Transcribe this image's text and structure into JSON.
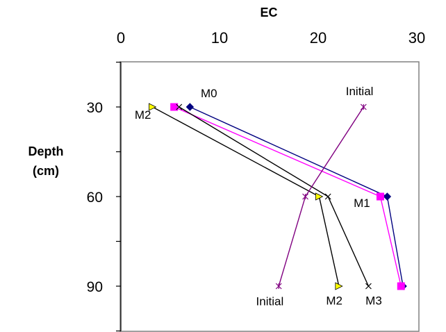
{
  "chart_data": {
    "type": "line",
    "title": "",
    "xlabel": "EC",
    "ylabel": [
      "Depth",
      "(cm)"
    ],
    "xlim": [
      0,
      30
    ],
    "ylim": [
      15,
      105
    ],
    "y_reversed": true,
    "x_axis_position": "top",
    "x_ticks": [
      0,
      10,
      20,
      30
    ],
    "y_ticks": [
      30,
      60,
      90
    ],
    "grid": false,
    "legend": "none",
    "series": [
      {
        "label": "M0",
        "color": "#000080",
        "marker": "diamond",
        "points": [
          {
            "x": 7.0,
            "y": 30
          },
          {
            "x": 27.0,
            "y": 60
          },
          {
            "x": 28.6,
            "y": 90
          }
        ]
      },
      {
        "label": "M1",
        "color": "#ff00ff",
        "marker": "square",
        "points": [
          {
            "x": 5.4,
            "y": 30
          },
          {
            "x": 26.3,
            "y": 60
          },
          {
            "x": 28.4,
            "y": 90
          }
        ]
      },
      {
        "label": "M2",
        "color": "#000000",
        "marker": "triangle-right",
        "marker_fill": "#ffff00",
        "points": [
          {
            "x": 3.2,
            "y": 30
          },
          {
            "x": 20.1,
            "y": 60
          },
          {
            "x": 22.1,
            "y": 90
          }
        ]
      },
      {
        "label": "M3",
        "color": "#000000",
        "marker": "x",
        "points": [
          {
            "x": 5.9,
            "y": 30
          },
          {
            "x": 21.0,
            "y": 60
          },
          {
            "x": 25.1,
            "y": 90
          }
        ]
      },
      {
        "label": "Initial",
        "color": "#800080",
        "marker": "star",
        "points": [
          {
            "x": 24.6,
            "y": 30
          },
          {
            "x": 18.7,
            "y": 60
          },
          {
            "x": 16.0,
            "y": 90
          }
        ]
      }
    ],
    "annotations": [
      {
        "text": "M0",
        "x": 8.1,
        "y": 26.7,
        "anchor": "start"
      },
      {
        "text": "M2",
        "x": 1.4,
        "y": 34.0,
        "anchor": "start"
      },
      {
        "text": "Initial",
        "x": 22.8,
        "y": 26.1,
        "anchor": "start"
      },
      {
        "text": "M1",
        "x": 23.6,
        "y": 63.5,
        "anchor": "start"
      },
      {
        "text": "Initial",
        "x": 13.7,
        "y": 96.4,
        "anchor": "start"
      },
      {
        "text": "M2",
        "x": 20.8,
        "y": 96.2,
        "anchor": "start"
      },
      {
        "text": "M3",
        "x": 24.8,
        "y": 96.2,
        "anchor": "start"
      }
    ]
  }
}
